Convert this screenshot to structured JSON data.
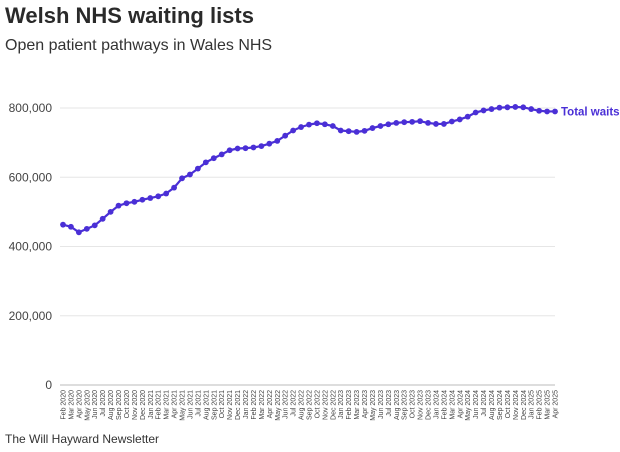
{
  "title": "Welsh NHS waiting lists",
  "subtitle": "Open patient pathways in Wales NHS",
  "source": "The Will Hayward Newsletter",
  "colors": {
    "series": "#4a2fd6",
    "grid": "#e6e6e6",
    "tick_text": "#444444"
  },
  "chart_data": {
    "type": "line",
    "title": "Welsh NHS waiting lists",
    "subtitle": "Open patient pathways in Wales NHS",
    "xlabel": "",
    "ylabel": "",
    "ylim": [
      0,
      800000
    ],
    "yticks": [
      0,
      200000,
      400000,
      600000,
      800000
    ],
    "ytick_labels": [
      "0",
      "200,000",
      "400,000",
      "600,000",
      "800,000"
    ],
    "grid": true,
    "categories": [
      "Feb 2020",
      "Mar 2020",
      "Apr 2020",
      "May 2020",
      "Jun 2020",
      "Jul 2020",
      "Aug 2020",
      "Sep 2020",
      "Oct 2020",
      "Nov 2020",
      "Dec 2020",
      "Jan 2021",
      "Feb 2021",
      "Mar 2021",
      "Apr 2021",
      "May 2021",
      "Jun 2021",
      "Jul 2021",
      "Aug 2021",
      "Sep 2021",
      "Oct 2021",
      "Nov 2021",
      "Dec 2021",
      "Jan 2022",
      "Feb 2022",
      "Mar 2022",
      "Apr 2022",
      "May 2022",
      "Jun 2022",
      "Jul 2022",
      "Aug 2022",
      "Sep 2022",
      "Oct 2022",
      "Nov 2022",
      "Dec 2022",
      "Jan 2023",
      "Feb 2023",
      "Mar 2023",
      "Apr 2023",
      "May 2023",
      "Jun 2023",
      "Jul 2023",
      "Aug 2023",
      "Sep 2023",
      "Oct 2023",
      "Nov 2023",
      "Dec 2023",
      "Jan 2024",
      "Feb 2024",
      "Mar 2024",
      "Apr 2024",
      "May 2024",
      "Jun 2024",
      "Jul 2024",
      "Aug 2024",
      "Sep 2024",
      "Oct 2024",
      "Nov 2024",
      "Dec 2024",
      "Jan 2025",
      "Feb 2025",
      "Mar 2025",
      "Apr 2025"
    ],
    "series": [
      {
        "name": "Total waits",
        "values": [
          463000,
          457000,
          441000,
          451000,
          461000,
          480000,
          500000,
          518000,
          525000,
          529000,
          535000,
          540000,
          545000,
          553000,
          570000,
          597000,
          608000,
          625000,
          643000,
          655000,
          666000,
          678000,
          683000,
          684000,
          686000,
          690000,
          697000,
          705000,
          720000,
          735000,
          745000,
          752000,
          756000,
          753000,
          748000,
          735000,
          733000,
          731000,
          734000,
          742000,
          748000,
          753000,
          757000,
          759000,
          760000,
          762000,
          757000,
          754000,
          754000,
          761000,
          767000,
          775000,
          787000,
          793000,
          797000,
          801000,
          802000,
          803000,
          802000,
          797000,
          792000,
          790000,
          790000
        ]
      }
    ]
  }
}
